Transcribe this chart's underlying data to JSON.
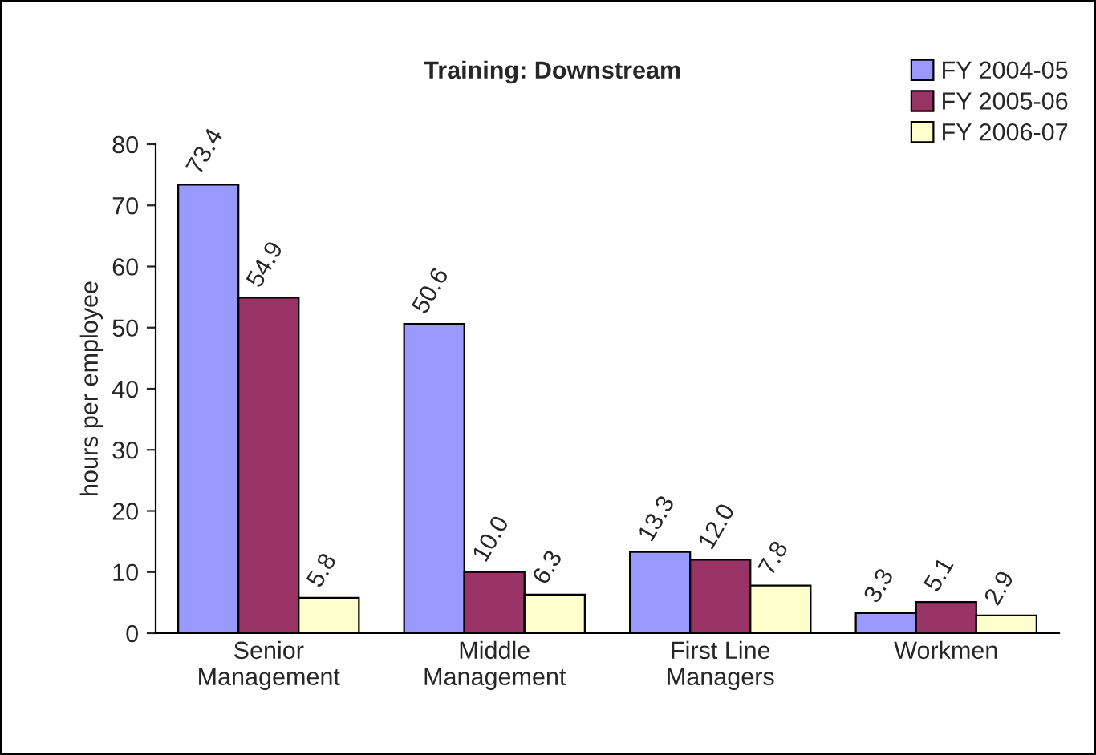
{
  "chart_data": {
    "type": "bar",
    "title": "Training: Downstream",
    "ylabel": "hours per employee",
    "categories": [
      "Senior\nManagement",
      "Middle\nManagement",
      "First Line\nManagers",
      "Workmen"
    ],
    "series": [
      {
        "name": "FY 2004-05",
        "color": "#9999ff",
        "values": [
          73.4,
          50.6,
          13.3,
          3.3
        ],
        "value_labels": [
          "73.4",
          "50.6",
          "13.3",
          "3.3"
        ]
      },
      {
        "name": "FY 2005-06",
        "color": "#993366",
        "values": [
          54.9,
          10.0,
          12.0,
          5.1
        ],
        "value_labels": [
          "54.9",
          "10.0",
          "12.0",
          "5.1"
        ]
      },
      {
        "name": "FY 2006-07",
        "color": "#ffffcc",
        "values": [
          5.8,
          6.3,
          7.8,
          2.9
        ],
        "value_labels": [
          "5.8",
          "6.3",
          "7.8",
          "2.9"
        ]
      }
    ],
    "ylim": [
      0,
      80
    ],
    "yticks": [
      0,
      10,
      20,
      30,
      40,
      50,
      60,
      70,
      80
    ],
    "grid": false,
    "legend": "top right"
  }
}
